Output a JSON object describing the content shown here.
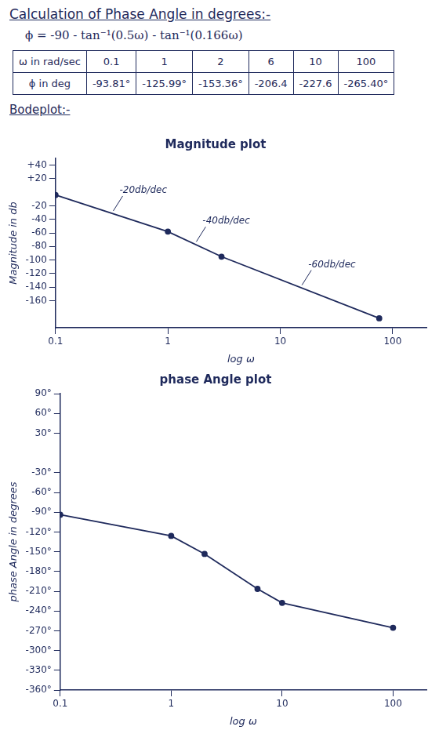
{
  "header": {
    "title": "Calculation of Phase Angle in degrees:-",
    "formula": "ϕ = -90 - tan⁻¹(0.5ω) - tan⁻¹(0.166ω)"
  },
  "table": {
    "rows": [
      [
        "ω in rad/sec",
        "0.1",
        "1",
        "2",
        "6",
        "10",
        "100"
      ],
      [
        "ϕ in deg",
        "-93.81°",
        "-125.99°",
        "-153.36°",
        "-206.4",
        "-227.6",
        "-265.40°"
      ]
    ]
  },
  "section_title": "Bodeplot:-",
  "chart_data": [
    {
      "type": "line",
      "title": "Magnitude plot",
      "x_label": "log ω",
      "y_label": "Magnitude in db",
      "x": [
        0.1,
        1,
        3,
        76
      ],
      "values": [
        -4,
        -58,
        -95,
        -186
      ],
      "log": "x",
      "xlim": [
        0.1,
        200
      ],
      "xticks": [
        0.1,
        1,
        10,
        100
      ],
      "ylim": [
        -200,
        50
      ],
      "yticks": [
        {
          "value": 40,
          "label": "+40"
        },
        {
          "value": 20,
          "label": "+20"
        },
        -20,
        -40,
        -60,
        -80,
        -100,
        -120,
        -140,
        -160
      ],
      "grid": false,
      "color": "#1f2a5c",
      "marker": "circle",
      "annotations": [
        "-20db/dec",
        "-40db/dec",
        "-60db/dec"
      ]
    },
    {
      "type": "line",
      "title": "phase Angle plot",
      "x_label": "log ω",
      "y_label": "phase Angle in degrees",
      "x": [
        0.1,
        1,
        2,
        6,
        10,
        100
      ],
      "values": [
        -93.81,
        -125.99,
        -153.36,
        -206.4,
        -227.6,
        -265.4
      ],
      "log": "x",
      "xlim": [
        0.1,
        200
      ],
      "xticks": [
        0.1,
        1,
        10,
        100
      ],
      "ylim": [
        -360,
        90
      ],
      "yticks": [
        {
          "value": 90,
          "label": "90°"
        },
        {
          "value": 60,
          "label": "60°"
        },
        {
          "value": 30,
          "label": "30°"
        },
        {
          "value": -30,
          "label": "-30°"
        },
        {
          "value": -60,
          "label": "-60°"
        },
        {
          "value": -90,
          "label": "-90°"
        },
        {
          "value": -120,
          "label": "-120°"
        },
        {
          "value": -150,
          "label": "-150°"
        },
        {
          "value": -180,
          "label": "-180°"
        },
        {
          "value": -210,
          "label": "-210°"
        },
        {
          "value": -240,
          "label": "-240°"
        },
        {
          "value": -270,
          "label": "-270°"
        },
        {
          "value": -300,
          "label": "-300°"
        },
        {
          "value": -330,
          "label": "-330°"
        },
        {
          "value": -360,
          "label": "-360°"
        }
      ],
      "grid": false,
      "color": "#1f2a5c",
      "marker": "circle"
    }
  ]
}
